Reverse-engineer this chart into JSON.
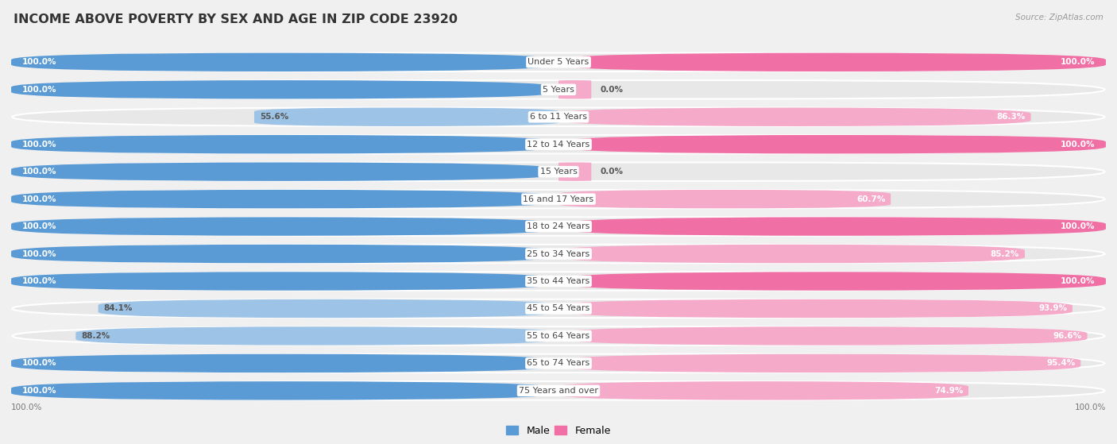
{
  "title": "INCOME ABOVE POVERTY BY SEX AND AGE IN ZIP CODE 23920",
  "source": "Source: ZipAtlas.com",
  "categories": [
    "Under 5 Years",
    "5 Years",
    "6 to 11 Years",
    "12 to 14 Years",
    "15 Years",
    "16 and 17 Years",
    "18 to 24 Years",
    "25 to 34 Years",
    "35 to 44 Years",
    "45 to 54 Years",
    "55 to 64 Years",
    "65 to 74 Years",
    "75 Years and over"
  ],
  "male_values": [
    100.0,
    100.0,
    55.6,
    100.0,
    100.0,
    100.0,
    100.0,
    100.0,
    100.0,
    84.1,
    88.2,
    100.0,
    100.0
  ],
  "female_values": [
    100.0,
    0.0,
    86.3,
    100.0,
    0.0,
    60.7,
    100.0,
    85.2,
    100.0,
    93.9,
    96.6,
    95.4,
    74.9
  ],
  "male_color_full": "#5b9bd5",
  "male_color_partial": "#9dc3e6",
  "female_color_full": "#f06fa4",
  "female_color_partial": "#f4aac8",
  "row_bg_color": "#e8e8e8",
  "bg_color": "#f0f0f0",
  "title_fontsize": 11.5,
  "label_fontsize": 8.0,
  "value_fontsize": 7.5,
  "source_fontsize": 7.5
}
